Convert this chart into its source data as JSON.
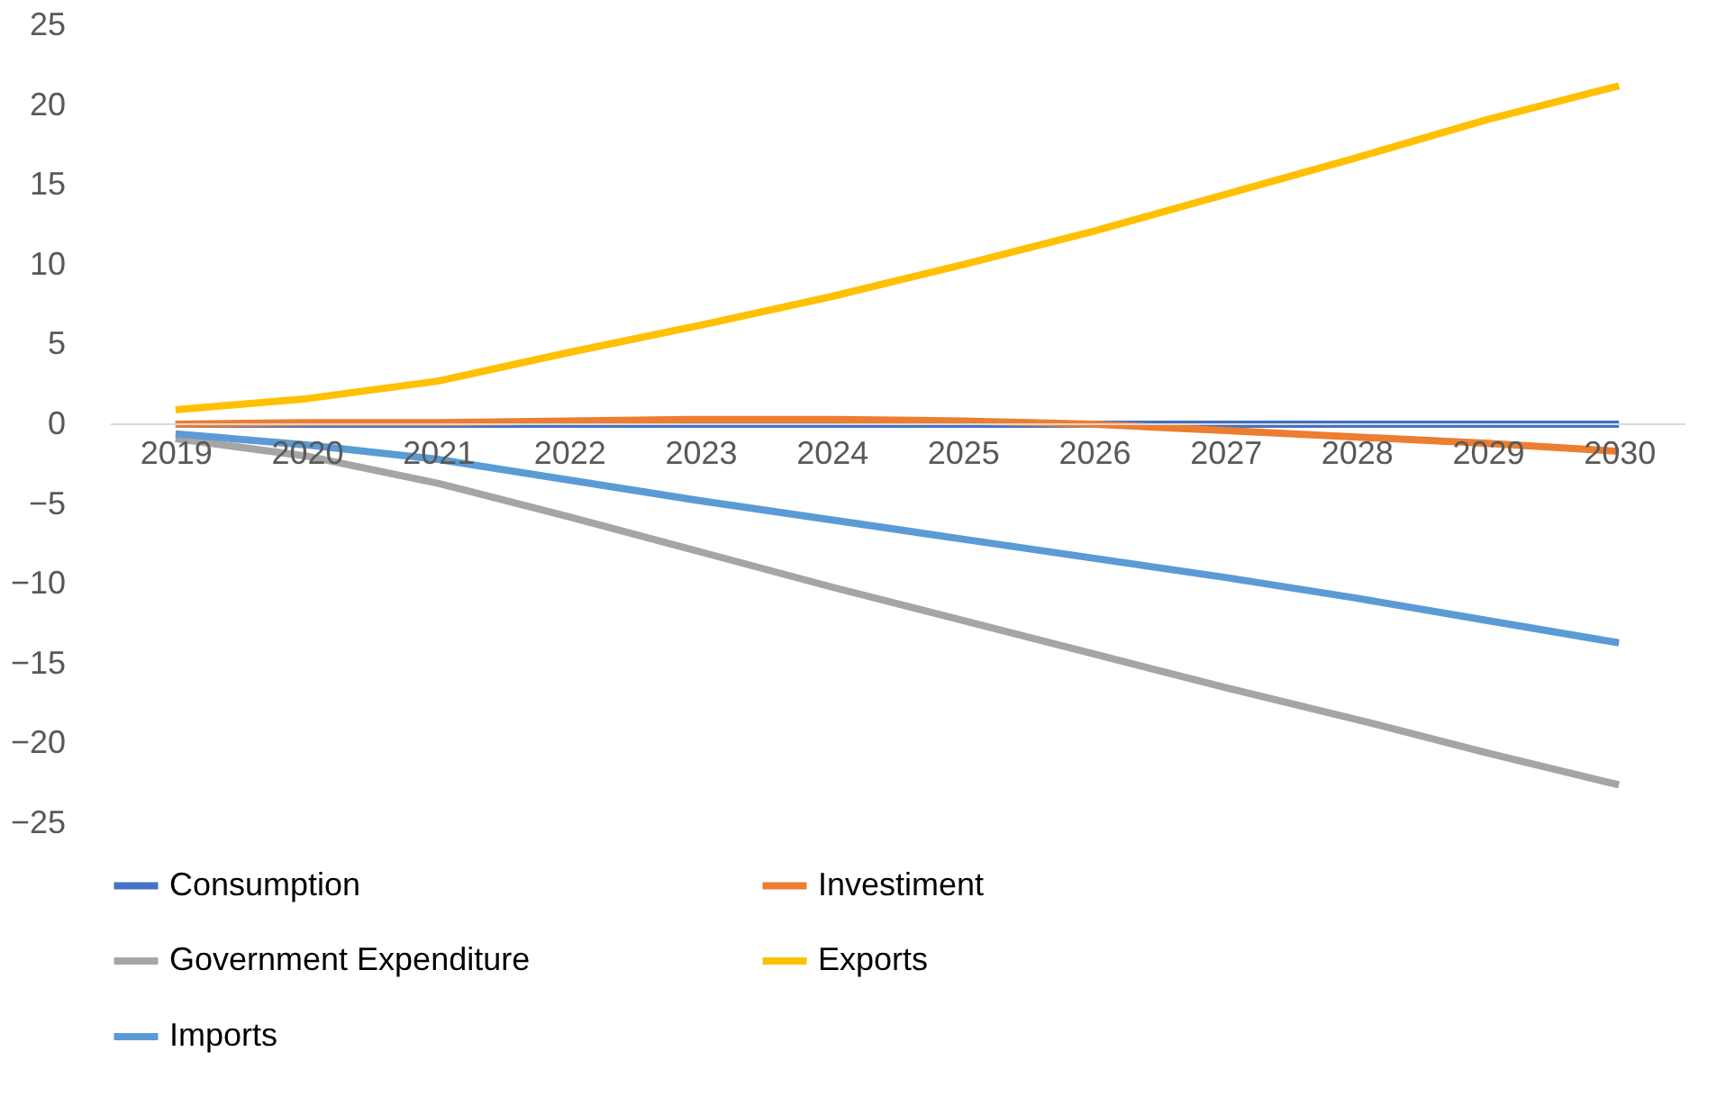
{
  "chart_data": {
    "type": "line",
    "categories": [
      "2019",
      "2020",
      "2021",
      "2022",
      "2023",
      "2024",
      "2025",
      "2026",
      "2027",
      "2028",
      "2029",
      "2030"
    ],
    "series": [
      {
        "name": "Consumption",
        "color": "#4472c4",
        "values": [
          0,
          0,
          0,
          0,
          0,
          0,
          0,
          0,
          0,
          0,
          0,
          0
        ]
      },
      {
        "name": "Investiment",
        "color": "#ed7d31",
        "values": [
          0,
          0.1,
          0.1,
          0.2,
          0.3,
          0.3,
          0.2,
          0,
          -0.4,
          -0.8,
          -1.2,
          -1.7
        ]
      },
      {
        "name": "Government Expenditure",
        "color": "#a5a5a5",
        "values": [
          -0.9,
          -2.0,
          -3.7,
          -5.8,
          -8.0,
          -10.2,
          -12.3,
          -14.4,
          -16.5,
          -18.5,
          -20.6,
          -22.6
        ]
      },
      {
        "name": "Exports",
        "color": "#ffc000",
        "values": [
          0.9,
          1.6,
          2.7,
          4.5,
          6.2,
          8.0,
          10.0,
          12.1,
          14.4,
          16.7,
          19.1,
          21.2
        ]
      },
      {
        "name": "Imports",
        "color": "#5b9bd5",
        "values": [
          -0.6,
          -1.3,
          -2.2,
          -3.5,
          -4.8,
          -6.0,
          -7.2,
          -8.4,
          -9.6,
          -10.9,
          -12.3,
          -13.7
        ]
      }
    ],
    "ylim": [
      -25,
      25
    ],
    "yticks": [
      -25,
      -20,
      -15,
      -10,
      -5,
      0,
      5,
      10,
      15,
      20,
      25
    ],
    "grid": false,
    "legend": "bottom",
    "marker": "none",
    "line_style": "solid"
  }
}
